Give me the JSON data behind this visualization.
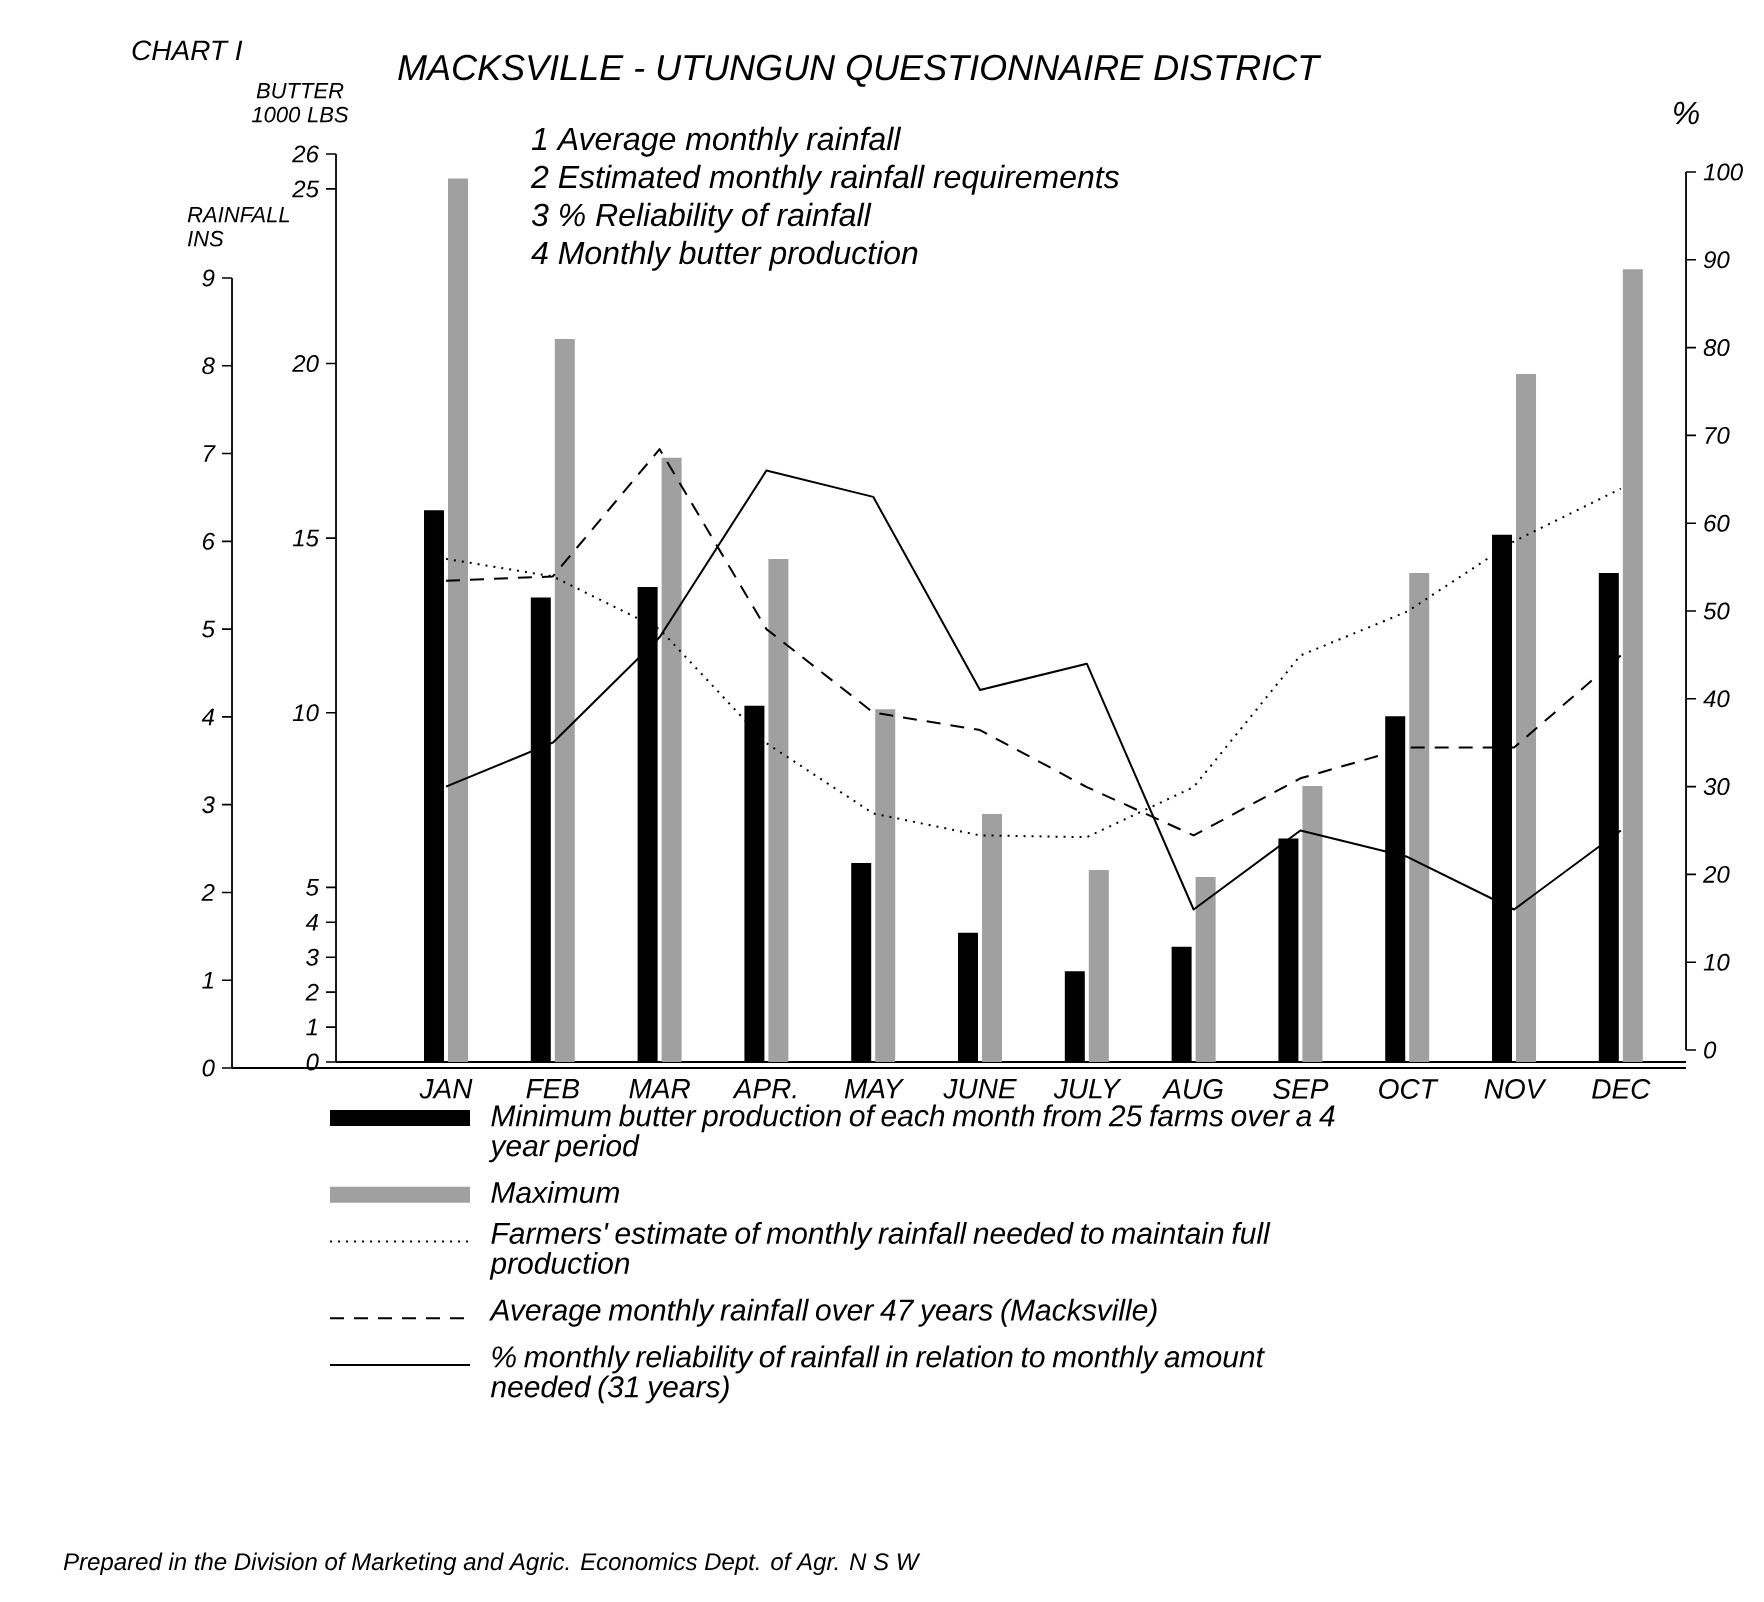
{
  "chart_data": {
    "type": "bar",
    "title": "MACKSVILLE - UTUNGUN QUESTIONNAIRE DISTRICT",
    "ylabel": "BUTTER 1000 LBS",
    "y2label": "%",
    "y3label": "RAINFALL INS",
    "categories": [
      "JAN",
      "FEB",
      "MAR",
      "APR.",
      "MAY",
      "JUNE",
      "JULY",
      "AUG",
      "SEP",
      "OCT",
      "NOV",
      "DEC"
    ],
    "series": [
      {
        "name": "Minimum butter production of each month from 25 farms over a 4 year period",
        "color": "#000000",
        "values": [
          15.8,
          13.3,
          13.6,
          10.2,
          5.7,
          3.7,
          2.6,
          3.3,
          6.4,
          9.9,
          15.1,
          14.0
        ]
      },
      {
        "name": "Maximum",
        "color": "#a0a0a0",
        "values": [
          25.3,
          20.7,
          17.3,
          14.4,
          10.1,
          7.1,
          5.5,
          5.3,
          7.9,
          14.0,
          19.7,
          22.7
        ]
      },
      {
        "name": "Farmers' estimate of monthly rainfall needed to maintain full production",
        "type": "line",
        "axis": "y3",
        "line_style": "dotted",
        "color": "#000000",
        "values": [
          5.8,
          5.6,
          5.0,
          3.7,
          2.9,
          2.65,
          2.63,
          3.2,
          4.7,
          5.2,
          6.0,
          6.6
        ]
      },
      {
        "name": "Average monthly rainfall over 47 years (Macksville)",
        "type": "line",
        "axis": "y3",
        "line_style": "dashed",
        "color": "#000000",
        "values": [
          5.55,
          5.6,
          7.05,
          5.0,
          4.05,
          3.85,
          3.2,
          2.65,
          3.3,
          3.65,
          3.65,
          4.7
        ]
      },
      {
        "name": "% monthly reliability of rainfall in relation to monthly amount needed (31 years)",
        "type": "line",
        "axis": "y2",
        "line_style": "solid",
        "color": "#000000",
        "values": [
          30,
          35,
          47,
          66,
          63,
          41,
          44,
          16,
          25,
          22,
          16,
          25
        ]
      }
    ],
    "ylim": [
      0,
      26
    ],
    "yticks": [
      0,
      1,
      2,
      3,
      4,
      5,
      10,
      15,
      20,
      25,
      26
    ],
    "y2lim": [
      0,
      100
    ],
    "y2ticks": [
      0,
      10,
      20,
      30,
      40,
      50,
      60,
      70,
      80,
      90,
      100
    ],
    "y3lim": [
      0,
      9
    ],
    "y3ticks": [
      0,
      1,
      2,
      3,
      4,
      5,
      6,
      7,
      8,
      9
    ],
    "marker": "none",
    "legend": "bottom",
    "annotations": [
      "CHART I",
      "1  Average monthly rainfall",
      "2  Estimated monthly rainfall requirements",
      "3  % Reliability of rainfall",
      "4  Monthly butter production",
      "Prepared in the Division of Marketing and Agric. Economics Dept. of Agr.  N S W"
    ]
  }
}
